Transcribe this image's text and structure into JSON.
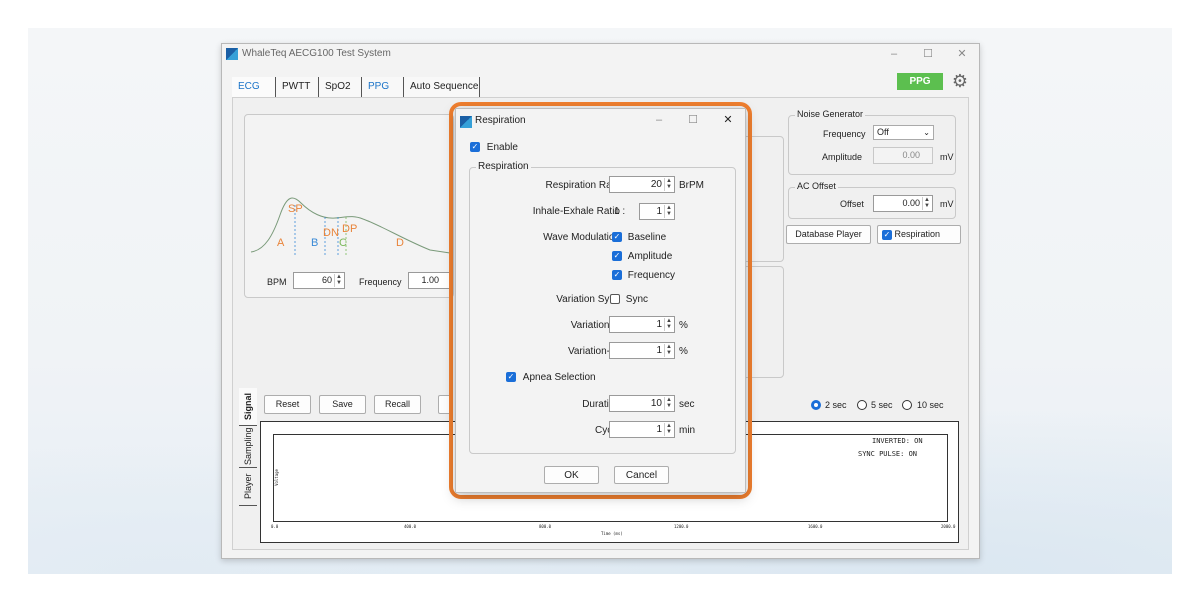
{
  "window": {
    "title": "WhaleTeq AECG100 Test System",
    "minimize": "–",
    "maximize": "☐",
    "close": "✕"
  },
  "tabs": [
    "ECG",
    "PWTT",
    "SpO2",
    "PPG",
    "Auto Sequence"
  ],
  "header": {
    "badge": "PPG",
    "settings_icon": "gear-icon"
  },
  "ppg": {
    "points": [
      "SP",
      "A",
      "B",
      "DN",
      "DP",
      "C",
      "D"
    ],
    "bpm_label": "BPM",
    "bpm_value": "60",
    "freq_label": "Frequency",
    "freq_value": "1.00"
  },
  "noise": {
    "title": "Noise Generator",
    "freq_label": "Frequency",
    "freq_value": "Off",
    "amp_label": "Amplitude",
    "amp_value": "0.00",
    "amp_unit": "mV"
  },
  "ac_offset": {
    "title": "AC Offset",
    "offset_label": "Offset",
    "offset_value": "0.00",
    "offset_unit": "mV"
  },
  "buttons": {
    "database_player": "Database Player",
    "respiration": "Respiration",
    "reset": "Reset",
    "save": "Save",
    "recall": "Recall"
  },
  "time_scale": {
    "options": [
      "2 sec",
      "5 sec",
      "10 sec"
    ],
    "selected": "2 sec"
  },
  "side_tabs": [
    "Signal",
    "Sampling",
    "Player"
  ],
  "plot": {
    "status_inverted": "INVERTED: ON",
    "status_sync": "SYNC PULSE: ON",
    "ylabel": "Voltage",
    "xlabel": "Time (ms)",
    "ticks": [
      "0.0",
      "400.0",
      "800.0",
      "1200.0",
      "1600.0",
      "2000.0"
    ]
  },
  "dialog": {
    "title": "Respiration",
    "enable": "Enable",
    "group": "Respiration",
    "rate_label": "Respiration Rate",
    "rate_value": "20",
    "rate_unit": "BrPM",
    "ratio_label": "Inhale-Exhale Ratio",
    "ratio_prefix": "1 :",
    "ratio_value": "1",
    "wave_label": "Wave Modulation",
    "wave_baseline": "Baseline",
    "wave_amplitude": "Amplitude",
    "wave_frequency": "Frequency",
    "sync_label": "Variation Sync",
    "sync_check": "Sync",
    "var_r_label": "Variation-R",
    "var_r_value": "1",
    "var_ir_label": "Variation-IR",
    "var_ir_value": "1",
    "pct": "%",
    "apnea": "Apnea Selection",
    "duration_label": "Duration",
    "duration_value": "10",
    "duration_unit": "sec",
    "cycle_label": "Cycle",
    "cycle_value": "1",
    "cycle_unit": "min",
    "ok": "OK",
    "cancel": "Cancel"
  },
  "colors": {
    "accent": "#1a73c8",
    "badge": "#5cbf4f",
    "highlight": "#f07f2f",
    "wave_point": "#e8843a"
  }
}
